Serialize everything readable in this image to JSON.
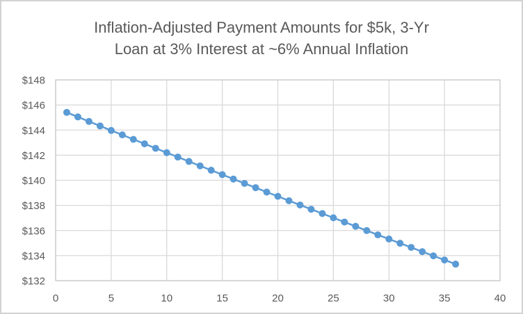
{
  "chart": {
    "title_lines": [
      "Inflation-Adjusted Payment Amounts for $5k, 3-Yr",
      "Loan at 3% Interest at ~6% Annual Inflation"
    ]
  },
  "chart_data": {
    "type": "scatter",
    "title": "Inflation-Adjusted Payment Amounts for $5k, 3-Yr Loan at 3% Interest at ~6% Annual Inflation",
    "xlabel": "",
    "ylabel": "",
    "x": [
      1,
      2,
      3,
      4,
      5,
      6,
      7,
      8,
      9,
      10,
      11,
      12,
      13,
      14,
      15,
      16,
      17,
      18,
      19,
      20,
      21,
      22,
      23,
      24,
      25,
      26,
      27,
      28,
      29,
      30,
      31,
      32,
      33,
      34,
      35,
      36
    ],
    "values": [
      145.41,
      145.05,
      144.69,
      144.33,
      143.97,
      143.62,
      143.26,
      142.91,
      142.55,
      142.2,
      141.85,
      141.5,
      141.15,
      140.8,
      140.45,
      140.1,
      139.75,
      139.41,
      139.06,
      138.72,
      138.37,
      138.03,
      137.69,
      137.35,
      137.01,
      136.67,
      136.33,
      135.99,
      135.65,
      135.32,
      134.98,
      134.65,
      134.31,
      133.98,
      133.65,
      133.32
    ],
    "xlim": [
      0,
      40
    ],
    "ylim": [
      132,
      148
    ],
    "x_ticks": [
      0,
      5,
      10,
      15,
      20,
      25,
      30,
      35,
      40
    ],
    "y_ticks": [
      132,
      134,
      136,
      138,
      140,
      142,
      144,
      146,
      148
    ],
    "y_tick_labels": [
      "$132",
      "$134",
      "$136",
      "$138",
      "$140",
      "$142",
      "$144",
      "$146",
      "$148"
    ],
    "grid": true,
    "legend": false,
    "marker": "circle",
    "line": true
  },
  "colors": {
    "series": "#5B9BD5",
    "gridline": "#D9D9D9",
    "plot_border": "#C9C9C9",
    "axis_text": "#595959",
    "title_text": "#595959",
    "frame_border": "#D2D2D2",
    "background": "#FFFFFF"
  }
}
